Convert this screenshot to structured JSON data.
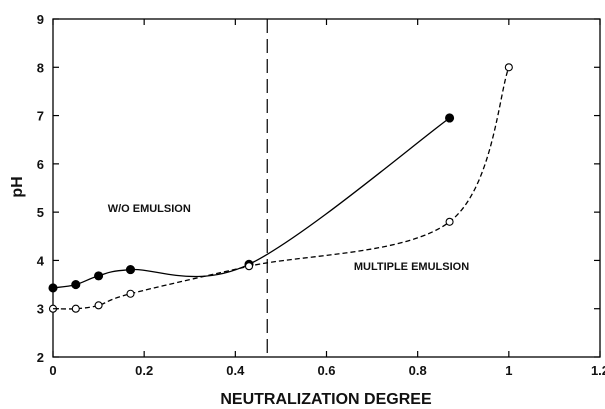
{
  "chart_data": {
    "type": "line",
    "title": "",
    "xlabel": "NEUTRALIZATION DEGREE",
    "ylabel": "pH",
    "xlim": [
      0,
      1.2
    ],
    "ylim": [
      2,
      9
    ],
    "x_ticks": [
      "0",
      "0.2",
      "0.4",
      "0.6",
      "0.8",
      "1",
      "1.2"
    ],
    "y_ticks": [
      "2",
      "3",
      "4",
      "5",
      "6",
      "7",
      "8",
      "9"
    ],
    "grid": false,
    "legend": "none",
    "series": [
      {
        "marker": "filled-circle",
        "line_style": "solid",
        "color": "#000000",
        "points": [
          {
            "x": 0,
            "y": 3.43
          },
          {
            "x": 0.05,
            "y": 3.5
          },
          {
            "x": 0.1,
            "y": 3.68
          },
          {
            "x": 0.17,
            "y": 3.81
          },
          {
            "x": 0.43,
            "y": 3.92
          },
          {
            "x": 0.87,
            "y": 6.95
          }
        ]
      },
      {
        "marker": "open-circle",
        "line_style": "dashed",
        "color": "#000000",
        "points": [
          {
            "x": 0,
            "y": 3.0
          },
          {
            "x": 0.05,
            "y": 3.0
          },
          {
            "x": 0.1,
            "y": 3.07
          },
          {
            "x": 0.17,
            "y": 3.31
          },
          {
            "x": 0.43,
            "y": 3.88
          },
          {
            "x": 0.87,
            "y": 4.8
          },
          {
            "x": 1.0,
            "y": 8.0
          }
        ]
      }
    ],
    "reference_lines": [
      {
        "orientation": "vertical",
        "x": 0.47,
        "style": "long-dash"
      }
    ],
    "annotations": [
      {
        "text": "W/O EMULSION",
        "x": 0.12,
        "y": 5.0
      },
      {
        "text": "MULTIPLE EMULSION",
        "x": 0.66,
        "y": 3.8
      }
    ]
  }
}
